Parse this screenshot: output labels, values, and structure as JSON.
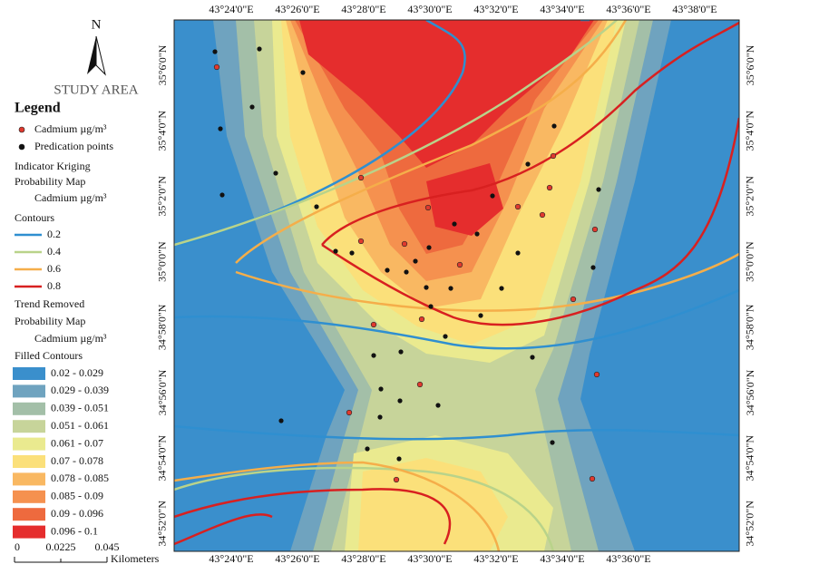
{
  "compass": {
    "north": "N",
    "label": "STUDY AREA"
  },
  "legend": {
    "title": "Legend",
    "symbols": [
      {
        "label": "Cadmium µg/m³",
        "color": "#e03a2f"
      },
      {
        "label": "Predication points",
        "color": "#111111"
      }
    ],
    "kriging_title": [
      "Indicator Kriging",
      "Probability Map"
    ],
    "kriging_unit": "Cadmium µg/m³",
    "contours_title": "Contours",
    "contours": [
      {
        "label": "0.2",
        "color": "#2f8fd0"
      },
      {
        "label": "0.4",
        "color": "#b9d38a"
      },
      {
        "label": "0.6",
        "color": "#f5ae4a"
      },
      {
        "label": "0.8",
        "color": "#d82020"
      }
    ],
    "trend_title": [
      "Trend Removed",
      "Probability Map"
    ],
    "trend_unit": "Cadmium µg/m³",
    "filled_title": "Filled Contours",
    "filled": [
      {
        "label": "0.02 - 0.029",
        "color": "#3a8fcc"
      },
      {
        "label": "0.029 - 0.039",
        "color": "#6fa3bf"
      },
      {
        "label": "0.039 - 0.051",
        "color": "#a3bfa8"
      },
      {
        "label": "0.051 - 0.061",
        "color": "#c7d49a"
      },
      {
        "label": "0.061 - 0.07",
        "color": "#eaea8f"
      },
      {
        "label": "0.07 - 0.078",
        "color": "#fbe07a"
      },
      {
        "label": "0.078 - 0.085",
        "color": "#f9b862"
      },
      {
        "label": "0.085 - 0.09",
        "color": "#f5914f"
      },
      {
        "label": "0.09 - 0.096",
        "color": "#ee6a3e"
      },
      {
        "label": "0.096 - 0.1",
        "color": "#e52d2d"
      }
    ]
  },
  "axes": {
    "top": [
      "43°24'0\"E",
      "43°26'0\"E",
      "43°28'0\"E",
      "43°30'0\"E",
      "43°32'0\"E",
      "43°34'0\"E",
      "43°36'0\"E",
      "43°38'0\"E"
    ],
    "bottom": [
      "43°24'0\"E",
      "43°26'0\"E",
      "43°28'0\"E",
      "43°30'0\"E",
      "43°32'0\"E",
      "43°34'0\"E",
      "43°36'0\"E"
    ],
    "left": [
      "35°6'0\"N",
      "35°4'0\"N",
      "35°2'0\"N",
      "35°0'0\"N",
      "34°58'0\"N",
      "34°56'0\"N",
      "34°54'0\"N",
      "34°52'0\"N"
    ],
    "right": [
      "35°6'0\"N",
      "35°4'0\"N",
      "35°2'0\"N",
      "35°0'0\"N",
      "34°58'0\"N",
      "34°56'0\"N",
      "34°54'0\"N",
      "34°52'0\"N"
    ]
  },
  "scale": {
    "ticks": [
      "0",
      "0.0225",
      "0.045"
    ],
    "unit": "Kilometers"
  }
}
